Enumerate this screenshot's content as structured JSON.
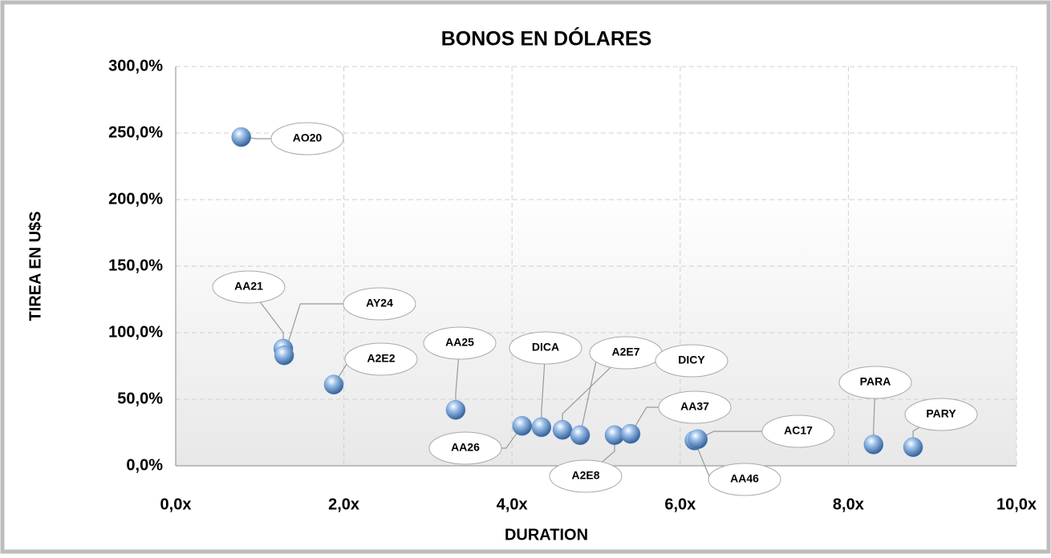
{
  "chart_data": {
    "type": "scatter",
    "title": "BONOS EN DÓLARES",
    "xlabel": "DURATION",
    "ylabel": "TIREA EN U$S",
    "point_labels": [
      "AO20",
      "AA21",
      "AY24",
      "A2E2",
      "AA25",
      "AA26",
      "DICA",
      "A2E7",
      "DICY",
      "A2E8",
      "AA37",
      "AA46",
      "AC17",
      "PARA",
      "PARY"
    ],
    "x": [
      0.78,
      1.28,
      1.29,
      1.88,
      3.33,
      4.12,
      4.35,
      4.6,
      4.81,
      5.22,
      5.41,
      6.17,
      6.21,
      8.3,
      8.77
    ],
    "values": [
      247,
      88,
      83,
      61,
      42,
      30,
      29,
      27,
      23,
      23,
      24,
      19,
      20,
      16,
      14
    ],
    "color": "#5b8fd0",
    "xlim": [
      0,
      10
    ],
    "xticks": [
      {
        "value": 0,
        "label": "0,0x"
      },
      {
        "value": 2,
        "label": "2,0x"
      },
      {
        "value": 4,
        "label": "4,0x"
      },
      {
        "value": 6,
        "label": "6,0x"
      },
      {
        "value": 8,
        "label": "8,0x"
      },
      {
        "value": 10,
        "label": "10,0x"
      }
    ],
    "ylim": [
      0,
      300
    ],
    "yticks": [
      {
        "value": 0,
        "label": "0,0%"
      },
      {
        "value": 50,
        "label": "50,0%"
      },
      {
        "value": 100,
        "label": "100,0%"
      },
      {
        "value": 150,
        "label": "150,0%"
      },
      {
        "value": 200,
        "label": "200,0%"
      },
      {
        "value": 250,
        "label": "250,0%"
      },
      {
        "value": 300,
        "label": "300,0%"
      }
    ],
    "grid": true
  }
}
